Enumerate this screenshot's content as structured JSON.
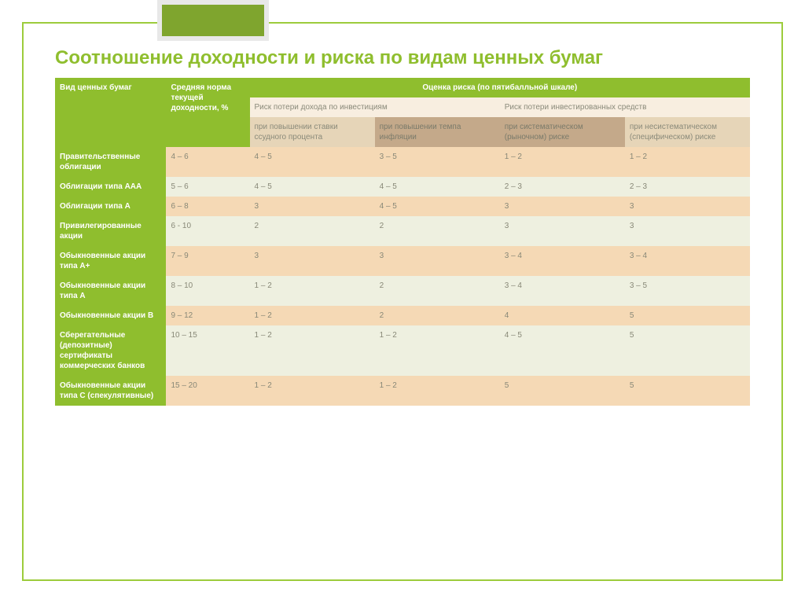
{
  "title": "Соотношение доходности и риска по видам ценных бумаг",
  "headers": {
    "col0": "Вид ценных бумаг",
    "col1": "Средняя норма текущей доходности, %",
    "col_risk": "Оценка риска (по пятибалльной шкале)",
    "sub_left": "Риск потери дохода по инвестициям",
    "sub_right": "Риск потери инвестированных средств",
    "c2": "при повышении ставки ссудного процента",
    "c3": "при повышении темпа инфляции",
    "c4": "при систематическом (рыночном) риске",
    "c5": "при несистематическом (специфическом) риске"
  },
  "rows": [
    {
      "label": "Правительственные облигации",
      "v": [
        "4 – 6",
        "4 – 5",
        "3 – 5",
        "1 – 2",
        "1 – 2"
      ]
    },
    {
      "label": "Облигации типа ААА",
      "v": [
        "5 – 6",
        "4 – 5",
        "4 – 5",
        "2 – 3",
        "2 – 3"
      ]
    },
    {
      "label": "Облигации типа А",
      "v": [
        "6 – 8",
        "3",
        "4 – 5",
        "3",
        "3"
      ]
    },
    {
      "label": "Привилегированные акции",
      "v": [
        "6 - 10",
        "2",
        "2",
        "3",
        "3"
      ]
    },
    {
      "label": "Обыкновенные акции типа А+",
      "v": [
        "7 – 9",
        "3",
        "3",
        "3 – 4",
        "3 – 4"
      ]
    },
    {
      "label": "Обыкновенные акции типа А",
      "v": [
        "8 – 10",
        "1 – 2",
        "2",
        "3 – 4",
        "3 – 5"
      ]
    },
    {
      "label": "Обыкновенные акции В",
      "v": [
        "9 – 12",
        "1 – 2",
        "2",
        "4",
        "5"
      ]
    },
    {
      "label": "Сберегательные (депозитные) сертификаты коммерческих банков",
      "v": [
        "10 – 15",
        "1 – 2",
        "1 – 2",
        "4 – 5",
        "5"
      ]
    },
    {
      "label": "Обыкновенные акции типа С (спекулятивные)",
      "v": [
        "15 – 20",
        "1 – 2",
        "1 – 2",
        "5",
        "5"
      ]
    }
  ],
  "style": {
    "green": "#8fbe2e",
    "border_green": "#9ccc3c",
    "decor_bg": "#7fa52e",
    "decor_border": "#e8e8e8",
    "beige_light": "#f8eee0",
    "beige_dark": "#e6d5b8",
    "brown": "#c4a98a",
    "tan_row": "#f5d9b5",
    "olive_lt": "#eef0e0",
    "text_muted": "#888877",
    "title_fontsize": 24,
    "cell_fontsize": 10
  }
}
